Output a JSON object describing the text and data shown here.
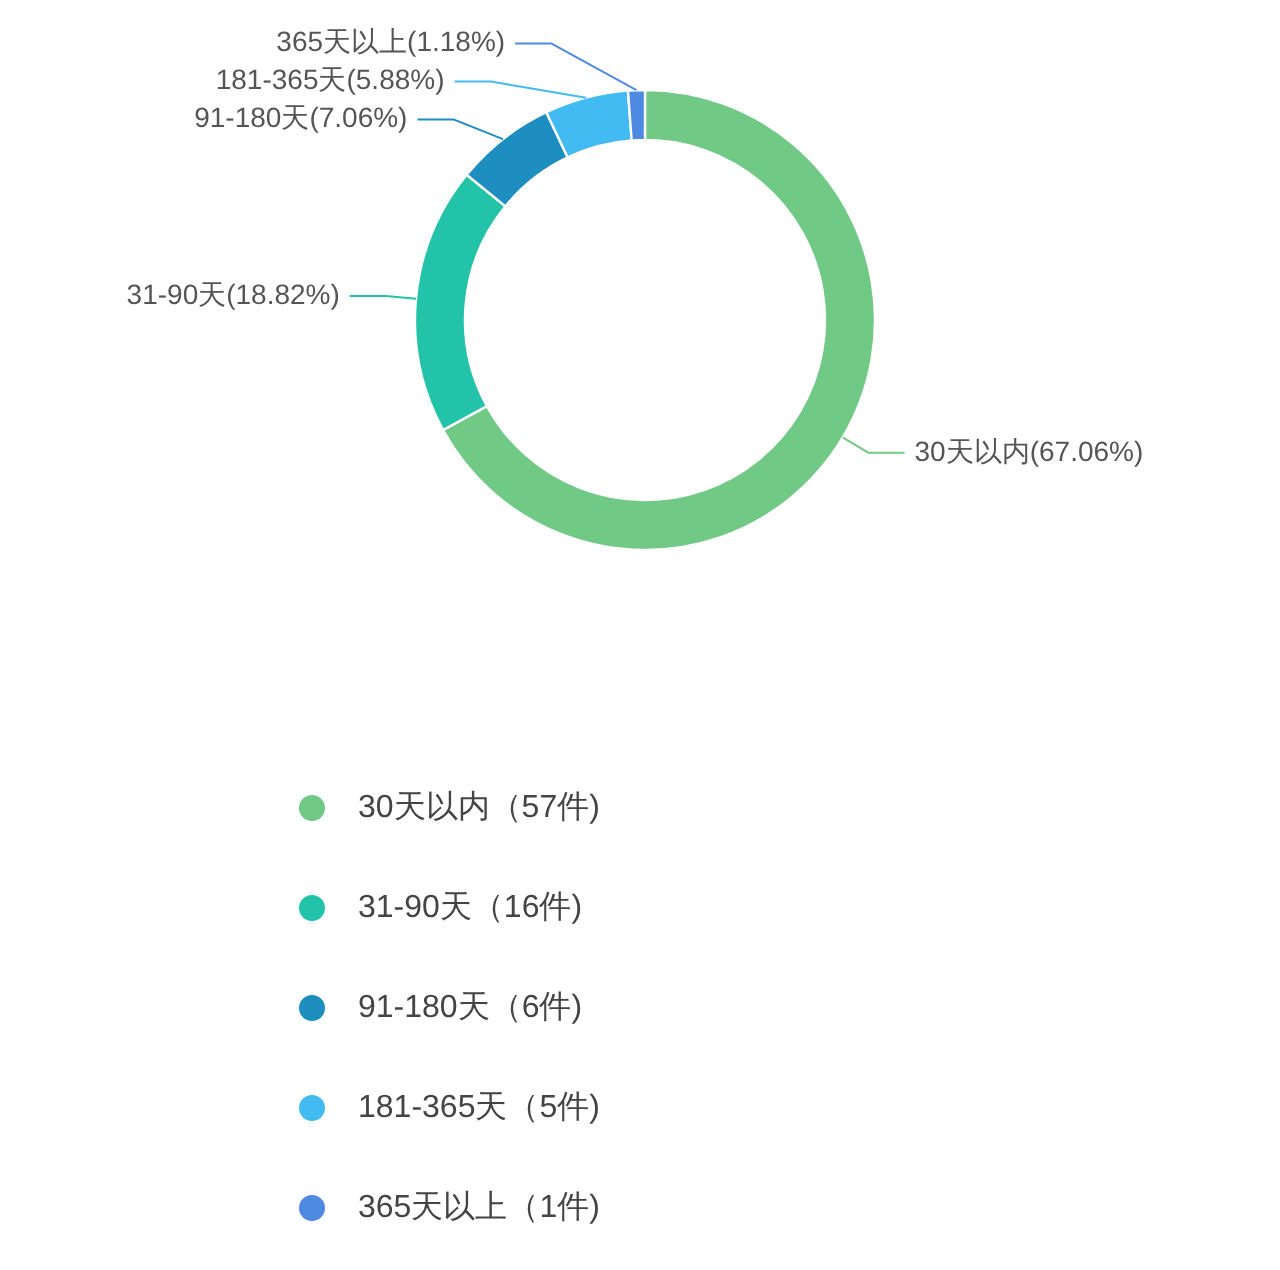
{
  "chart_data": {
    "type": "donut",
    "categories": [
      "30天以内",
      "31-90天",
      "91-180天",
      "181-365天",
      "365天以上"
    ],
    "values": [
      67.06,
      18.82,
      7.06,
      5.88,
      1.18
    ],
    "colors": [
      "#70c984",
      "#22c3a8",
      "#1e8ec0",
      "#42baf2",
      "#4f8ae2"
    ],
    "value_labels": [
      "(67.06%)",
      "(18.82%)",
      "(7.06%)",
      "(5.88%)",
      "(1.18%)"
    ],
    "annotations": [
      "（57件)",
      "（16件)",
      "（6件)",
      "（5件)",
      "（1件)"
    ],
    "legend": "bottom"
  }
}
